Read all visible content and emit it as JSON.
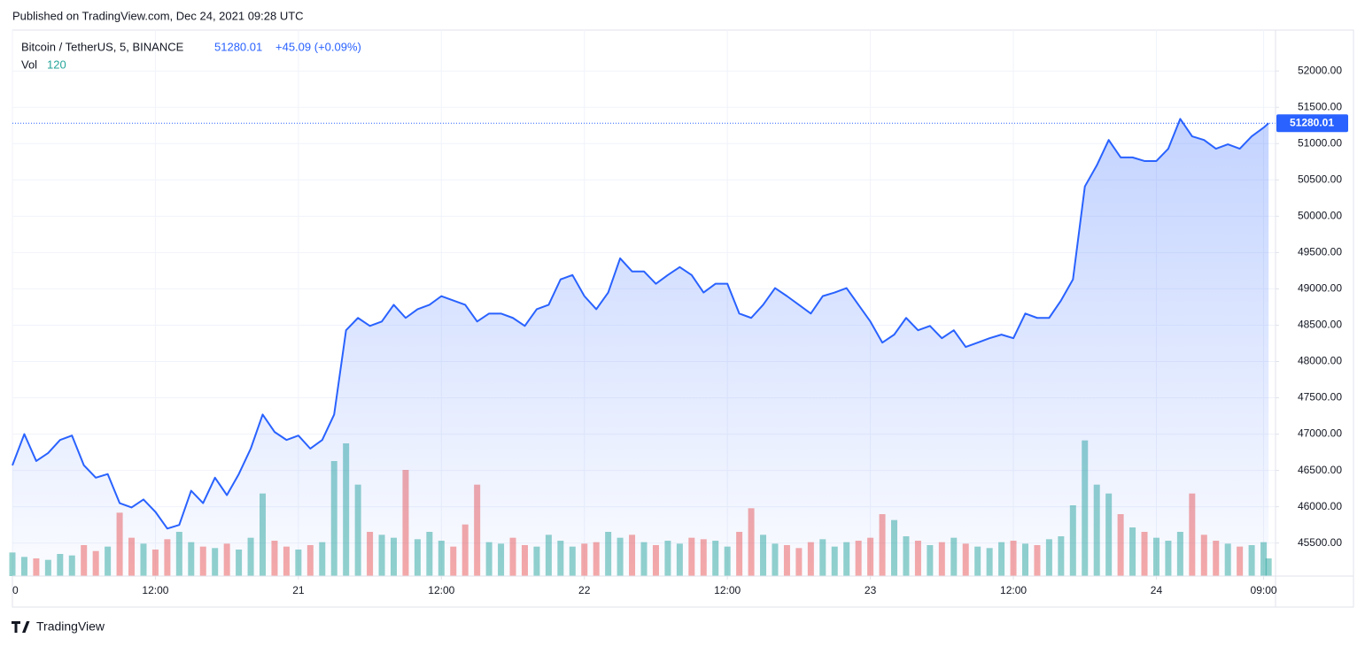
{
  "published": "Published on TradingView.com, Dec 24, 2021 09:28 UTC",
  "brand": "TradingView",
  "chart_data": {
    "type": "line",
    "title": "Bitcoin / TetherUS, 5, BINANCE",
    "change": "+45.09 (+0.09%)",
    "volume_label": "Vol",
    "x": [
      "2021-12-20 00:00",
      "2021-12-20 01:00",
      "2021-12-20 02:00",
      "2021-12-20 03:00",
      "2021-12-20 04:00",
      "2021-12-20 05:00",
      "2021-12-20 06:00",
      "2021-12-20 07:00",
      "2021-12-20 08:00",
      "2021-12-20 09:00",
      "2021-12-20 10:00",
      "2021-12-20 11:00",
      "2021-12-20 12:00",
      "2021-12-20 13:00",
      "2021-12-20 14:00",
      "2021-12-20 15:00",
      "2021-12-20 16:00",
      "2021-12-20 17:00",
      "2021-12-20 18:00",
      "2021-12-20 19:00",
      "2021-12-20 20:00",
      "2021-12-20 21:00",
      "2021-12-20 22:00",
      "2021-12-20 23:00",
      "2021-12-21 00:00",
      "2021-12-21 01:00",
      "2021-12-21 02:00",
      "2021-12-21 03:00",
      "2021-12-21 04:00",
      "2021-12-21 05:00",
      "2021-12-21 06:00",
      "2021-12-21 07:00",
      "2021-12-21 08:00",
      "2021-12-21 09:00",
      "2021-12-21 10:00",
      "2021-12-21 11:00",
      "2021-12-21 12:00",
      "2021-12-21 13:00",
      "2021-12-21 14:00",
      "2021-12-21 15:00",
      "2021-12-21 16:00",
      "2021-12-21 17:00",
      "2021-12-21 18:00",
      "2021-12-21 19:00",
      "2021-12-21 20:00",
      "2021-12-21 21:00",
      "2021-12-21 22:00",
      "2021-12-21 23:00",
      "2021-12-22 00:00",
      "2021-12-22 01:00",
      "2021-12-22 02:00",
      "2021-12-22 03:00",
      "2021-12-22 04:00",
      "2021-12-22 05:00",
      "2021-12-22 06:00",
      "2021-12-22 07:00",
      "2021-12-22 08:00",
      "2021-12-22 09:00",
      "2021-12-22 10:00",
      "2021-12-22 11:00",
      "2021-12-22 12:00",
      "2021-12-22 13:00",
      "2021-12-22 14:00",
      "2021-12-22 15:00",
      "2021-12-22 16:00",
      "2021-12-22 17:00",
      "2021-12-22 18:00",
      "2021-12-22 19:00",
      "2021-12-22 20:00",
      "2021-12-22 21:00",
      "2021-12-22 22:00",
      "2021-12-22 23:00",
      "2021-12-23 00:00",
      "2021-12-23 01:00",
      "2021-12-23 02:00",
      "2021-12-23 03:00",
      "2021-12-23 04:00",
      "2021-12-23 05:00",
      "2021-12-23 06:00",
      "2021-12-23 07:00",
      "2021-12-23 08:00",
      "2021-12-23 09:00",
      "2021-12-23 10:00",
      "2021-12-23 11:00",
      "2021-12-23 12:00",
      "2021-12-23 13:00",
      "2021-12-23 14:00",
      "2021-12-23 15:00",
      "2021-12-23 16:00",
      "2021-12-23 17:00",
      "2021-12-23 18:00",
      "2021-12-23 19:00",
      "2021-12-23 20:00",
      "2021-12-23 21:00",
      "2021-12-23 22:00",
      "2021-12-23 23:00",
      "2021-12-24 00:00",
      "2021-12-24 01:00",
      "2021-12-24 02:00",
      "2021-12-24 03:00",
      "2021-12-24 04:00",
      "2021-12-24 05:00",
      "2021-12-24 06:00",
      "2021-12-24 07:00",
      "2021-12-24 08:00",
      "2021-12-24 09:00",
      "2021-12-24 09:25"
    ],
    "series": [
      {
        "name": "Bitcoin / TetherUS",
        "color": "#2962ff",
        "values": [
          46570,
          47000,
          46630,
          46740,
          46920,
          46980,
          46570,
          46400,
          46450,
          46050,
          45990,
          46100,
          45930,
          45700,
          45750,
          46220,
          46050,
          46400,
          46160,
          46450,
          46800,
          47270,
          47030,
          46920,
          46980,
          46800,
          46920,
          47270,
          48430,
          48600,
          48490,
          48550,
          48780,
          48600,
          48720,
          48780,
          48900,
          48840,
          48780,
          48550,
          48660,
          48660,
          48600,
          48490,
          48720,
          48780,
          49130,
          49190,
          48900,
          48720,
          48950,
          49420,
          49240,
          49240,
          49070,
          49190,
          49300,
          49190,
          48950,
          49070,
          49070,
          48660,
          48600,
          48780,
          49010,
          48900,
          48780,
          48660,
          48900,
          48950,
          49010,
          48780,
          48550,
          48260,
          48370,
          48600,
          48430,
          48490,
          48320,
          48430,
          48200,
          48260,
          48320,
          48370,
          48320,
          48660,
          48600,
          48600,
          48840,
          49130,
          50410,
          50700,
          51050,
          50810,
          50810,
          50760,
          50760,
          50930,
          51340,
          51100,
          51050,
          50930,
          50990,
          50930,
          51100,
          51220,
          51280.01
        ]
      },
      {
        "name": "Vol",
        "axis": "y2",
        "up_color": "#26a69a",
        "down_color": "#ef5350",
        "values": [
          160,
          130,
          120,
          110,
          150,
          140,
          210,
          170,
          200,
          430,
          260,
          220,
          180,
          250,
          300,
          230,
          200,
          190,
          220,
          180,
          260,
          560,
          240,
          200,
          180,
          210,
          230,
          780,
          900,
          620,
          300,
          280,
          260,
          720,
          250,
          300,
          240,
          200,
          350,
          620,
          230,
          220,
          260,
          210,
          200,
          280,
          240,
          200,
          220,
          230,
          300,
          260,
          280,
          230,
          210,
          240,
          220,
          260,
          250,
          240,
          200,
          300,
          460,
          280,
          220,
          210,
          190,
          230,
          250,
          200,
          230,
          240,
          260,
          420,
          380,
          270,
          240,
          210,
          230,
          260,
          220,
          200,
          190,
          230,
          240,
          220,
          210,
          250,
          270,
          480,
          920,
          620,
          560,
          420,
          330,
          300,
          260,
          240,
          300,
          560,
          280,
          240,
          220,
          200,
          210,
          230,
          120
        ]
      }
    ],
    "xlim": [
      "2021-12-20 00:00",
      "2021-12-24 10:00"
    ],
    "xticks": [
      {
        "value": "2021-12-20 00:00",
        "label": "0"
      },
      {
        "value": "2021-12-20 12:00",
        "label": "12:00"
      },
      {
        "value": "2021-12-21 00:00",
        "label": "21"
      },
      {
        "value": "2021-12-21 12:00",
        "label": "12:00"
      },
      {
        "value": "2021-12-22 00:00",
        "label": "22"
      },
      {
        "value": "2021-12-22 12:00",
        "label": "12:00"
      },
      {
        "value": "2021-12-23 00:00",
        "label": "23"
      },
      {
        "value": "2021-12-23 12:00",
        "label": "12:00"
      },
      {
        "value": "2021-12-24 00:00",
        "label": "24"
      },
      {
        "value": "2021-12-24 09:00",
        "label": "09:00"
      }
    ],
    "ylim": [
      45045.35,
      52562.79
    ],
    "yticks": [
      {
        "value": 45500,
        "label": "45500.00"
      },
      {
        "value": 46000,
        "label": "46000.00"
      },
      {
        "value": 46500,
        "label": "46500.00"
      },
      {
        "value": 47000,
        "label": "47000.00"
      },
      {
        "value": 47500,
        "label": "47500.00"
      },
      {
        "value": 48000,
        "label": "48000.00"
      },
      {
        "value": 48500,
        "label": "48500.00"
      },
      {
        "value": 49000,
        "label": "49000.00"
      },
      {
        "value": 49500,
        "label": "49500.00"
      },
      {
        "value": 50000,
        "label": "50000.00"
      },
      {
        "value": 50500,
        "label": "50500.00"
      },
      {
        "value": 51000,
        "label": "51000.00"
      },
      {
        "value": 51500,
        "label": "51500.00"
      },
      {
        "value": 52000,
        "label": "52000.00"
      }
    ],
    "y2lim": [
      0,
      1200
    ],
    "grid": true
  }
}
